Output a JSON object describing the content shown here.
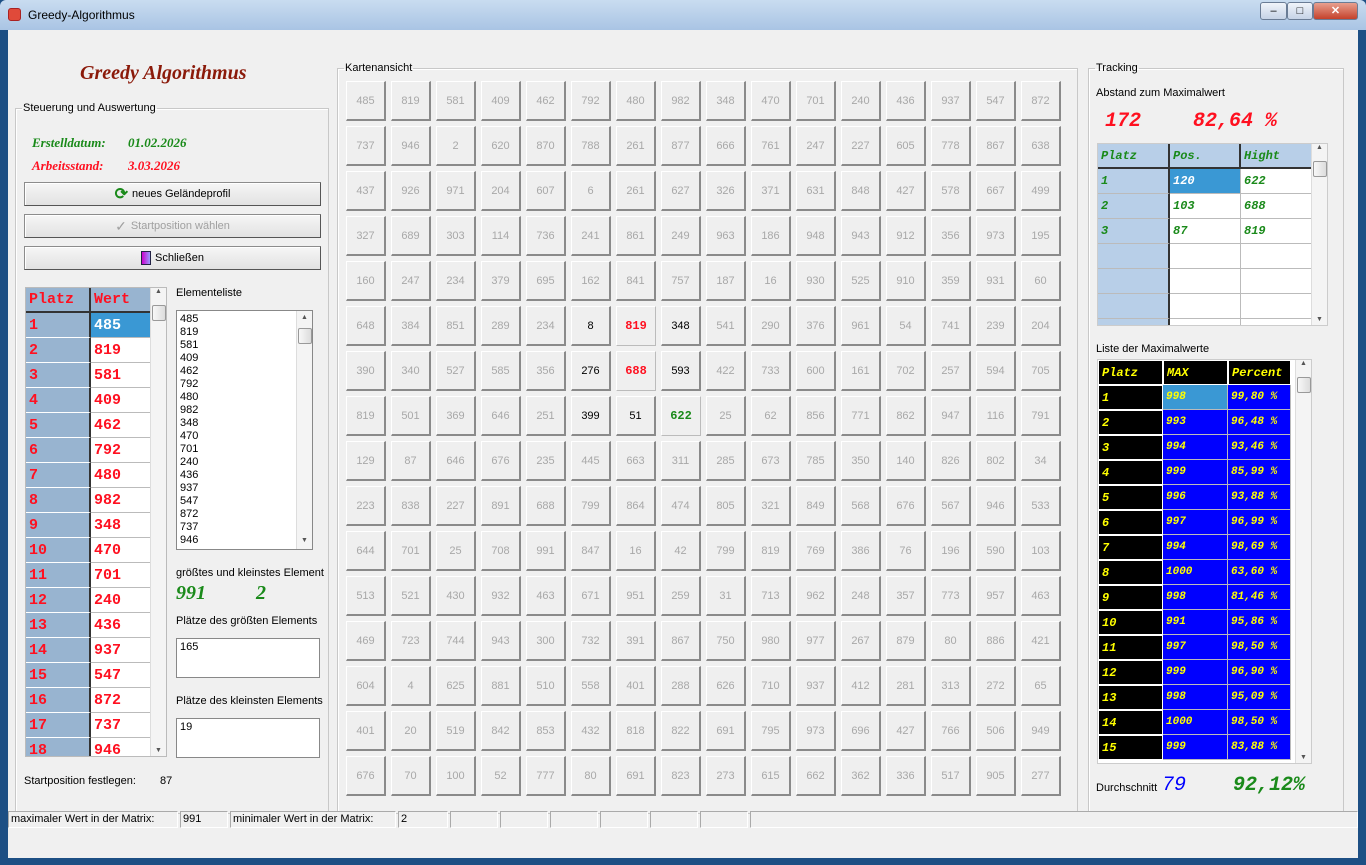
{
  "window": {
    "title": "Greedy-Algorithmus",
    "minimize": "–",
    "maximize": "□",
    "close": "✕"
  },
  "app_title": "Greedy Algorithmus",
  "control": {
    "legend": "Steuerung und Auswertung",
    "created_label": "Erstelldatum:",
    "created_value": "01.02.2026",
    "status_label": "Arbeitsstand:",
    "status_value": "3.03.2026",
    "btn_new": "neues Geländeprofil",
    "btn_start": "Startposition wählen",
    "btn_close": "Schließen",
    "table": {
      "headers": [
        "Platz",
        "Wert"
      ],
      "rows": [
        [
          "1",
          "485"
        ],
        [
          "2",
          "819"
        ],
        [
          "3",
          "581"
        ],
        [
          "4",
          "409"
        ],
        [
          "5",
          "462"
        ],
        [
          "6",
          "792"
        ],
        [
          "7",
          "480"
        ],
        [
          "8",
          "982"
        ],
        [
          "9",
          "348"
        ],
        [
          "10",
          "470"
        ],
        [
          "11",
          "701"
        ],
        [
          "12",
          "240"
        ],
        [
          "13",
          "436"
        ],
        [
          "14",
          "937"
        ],
        [
          "15",
          "547"
        ],
        [
          "16",
          "872"
        ],
        [
          "17",
          "737"
        ],
        [
          "18",
          "946"
        ]
      ]
    },
    "element_list_label": "Elementeliste",
    "element_list": [
      "485",
      "819",
      "581",
      "409",
      "462",
      "792",
      "480",
      "982",
      "348",
      "470",
      "701",
      "240",
      "436",
      "937",
      "547",
      "872",
      "737",
      "946"
    ],
    "minmax_label": "größtes und kleinstes Element",
    "max_value": "991",
    "min_value": "2",
    "max_places_label": "Plätze des größten Elements",
    "max_places": "165",
    "min_places_label": "Plätze des kleinsten Elements",
    "min_places": "19",
    "start_label": "Startposition festlegen:",
    "start_value": "87"
  },
  "map": {
    "legend": "Kartenansicht",
    "path_positions": [
      87,
      103
    ],
    "current_position": 120,
    "neighbor_positions": [
      86,
      88,
      102,
      104,
      118,
      119
    ],
    "cells": [
      [
        485,
        819,
        581,
        409,
        462,
        792,
        480,
        982,
        348,
        470,
        701,
        240,
        436,
        937,
        547,
        872
      ],
      [
        737,
        946,
        2,
        620,
        870,
        788,
        261,
        877,
        666,
        761,
        247,
        227,
        605,
        778,
        867,
        638
      ],
      [
        437,
        926,
        971,
        204,
        607,
        6,
        261,
        627,
        326,
        371,
        631,
        848,
        427,
        578,
        667,
        499
      ],
      [
        327,
        689,
        303,
        114,
        736,
        241,
        861,
        249,
        963,
        186,
        948,
        943,
        912,
        356,
        973,
        195
      ],
      [
        160,
        247,
        234,
        379,
        695,
        162,
        841,
        757,
        187,
        16,
        930,
        525,
        910,
        359,
        931,
        60
      ],
      [
        648,
        384,
        851,
        289,
        234,
        8,
        819,
        348,
        541,
        290,
        376,
        961,
        54,
        741,
        239,
        204
      ],
      [
        390,
        340,
        527,
        585,
        356,
        276,
        688,
        593,
        422,
        733,
        600,
        161,
        702,
        257,
        594,
        705
      ],
      [
        819,
        501,
        369,
        646,
        251,
        399,
        51,
        622,
        25,
        62,
        856,
        771,
        862,
        947,
        116,
        791
      ],
      [
        129,
        87,
        646,
        676,
        235,
        445,
        663,
        311,
        285,
        673,
        785,
        350,
        140,
        826,
        802,
        34
      ],
      [
        223,
        838,
        227,
        891,
        688,
        799,
        864,
        474,
        805,
        321,
        849,
        568,
        676,
        567,
        946,
        533
      ],
      [
        644,
        701,
        25,
        708,
        991,
        847,
        16,
        42,
        799,
        819,
        769,
        386,
        76,
        196,
        590,
        103
      ],
      [
        513,
        521,
        430,
        932,
        463,
        671,
        951,
        259,
        31,
        713,
        962,
        248,
        357,
        773,
        957,
        463
      ],
      [
        469,
        723,
        744,
        943,
        300,
        732,
        391,
        867,
        750,
        980,
        977,
        267,
        879,
        80,
        886,
        421
      ],
      [
        604,
        4,
        625,
        881,
        510,
        558,
        401,
        288,
        626,
        710,
        937,
        412,
        281,
        313,
        272,
        65
      ],
      [
        401,
        20,
        519,
        842,
        853,
        432,
        818,
        822,
        691,
        795,
        973,
        696,
        427,
        766,
        506,
        949
      ],
      [
        676,
        70,
        100,
        52,
        777,
        80,
        691,
        823,
        273,
        615,
        662,
        362,
        336,
        517,
        905,
        277
      ]
    ]
  },
  "tracking": {
    "legend": "Tracking",
    "distance_label": "Abstand zum Maximalwert",
    "distance_value": "172",
    "distance_percent": "82,64 %",
    "table": {
      "headers": [
        "Platz",
        "Pos.",
        "Hight"
      ],
      "rows": [
        [
          "1",
          "120",
          "622"
        ],
        [
          "2",
          "103",
          "688"
        ],
        [
          "3",
          "87",
          "819"
        ],
        [
          "",
          "",
          ""
        ],
        [
          "",
          "",
          ""
        ],
        [
          "",
          "",
          ""
        ],
        [
          "",
          "",
          ""
        ]
      ]
    },
    "max_list_label": "Liste der Maximalwerte",
    "max_table": {
      "headers": [
        "Platz",
        "MAX",
        "Percent"
      ],
      "rows": [
        [
          "1",
          "998",
          "99,80 %"
        ],
        [
          "2",
          "993",
          "96,48 %"
        ],
        [
          "3",
          "994",
          "93,46 %"
        ],
        [
          "4",
          "999",
          "85,99 %"
        ],
        [
          "5",
          "996",
          "93,88 %"
        ],
        [
          "6",
          "997",
          "96,99 %"
        ],
        [
          "7",
          "994",
          "98,69 %"
        ],
        [
          "8",
          "1000",
          "63,60 %"
        ],
        [
          "9",
          "998",
          "81,46 %"
        ],
        [
          "10",
          "991",
          "95,86 %"
        ],
        [
          "11",
          "997",
          "98,50 %"
        ],
        [
          "12",
          "999",
          "96,90 %"
        ],
        [
          "13",
          "998",
          "95,09 %"
        ],
        [
          "14",
          "1000",
          "98,50 %"
        ],
        [
          "15",
          "999",
          "83,88 %"
        ]
      ]
    },
    "avg_label": "Durchschnitt",
    "avg_value": "79",
    "avg_percent": "92,12%"
  },
  "statusbar": {
    "max_label": "maximaler Wert in der Matrix:",
    "max_value": "991",
    "min_label": "minimaler Wert in der Matrix:",
    "min_value": "2"
  },
  "colors": {
    "red": "#ff1020",
    "green": "#1a8a1a",
    "blue": "#0000ff",
    "yellow": "#ffff00",
    "header_blue": "#b8cfe8"
  }
}
